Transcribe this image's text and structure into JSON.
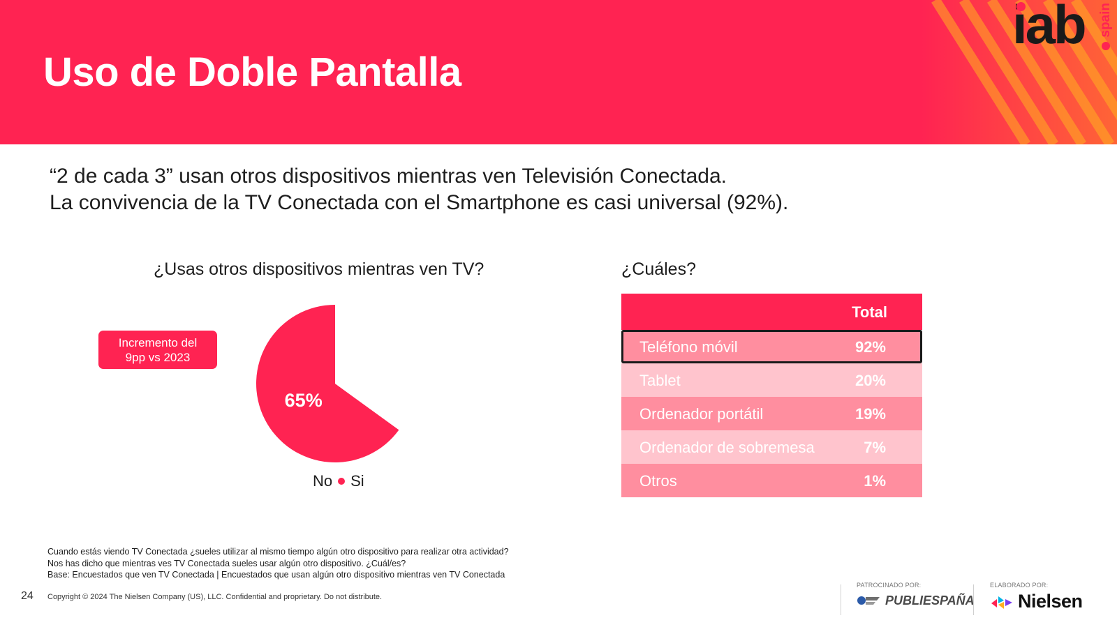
{
  "header": {
    "title": "Uso de Doble Pantalla"
  },
  "brand": {
    "logo_main": "iab",
    "logo_sub": "spain",
    "accent": "#ff2352"
  },
  "subtitle": {
    "line1": "“2 de cada 3” usan otros dispositivos mientras ven Televisión Conectada.",
    "line2": "La convivencia de la TV Conectada con el Smartphone es casi universal (92%)."
  },
  "left_question": "¿Usas otros dispositivos mientras ven TV?",
  "right_question": "¿Cuáles?",
  "badge": {
    "line1": "Incremento del",
    "line2": "9pp vs 2023"
  },
  "chart_data": [
    {
      "type": "pie",
      "title": "¿Usas otros dispositivos mientras ven TV?",
      "categories": [
        "No",
        "Si"
      ],
      "values": [
        35,
        65
      ],
      "data_labels": [
        "",
        "65%"
      ],
      "colors": [
        "#ffffff",
        "#ff2352"
      ],
      "legend": {
        "placement": "bottom",
        "entries": [
          "No",
          "Si"
        ]
      }
    },
    {
      "type": "table",
      "title": "¿Cuáles?",
      "header": [
        "",
        "Total"
      ],
      "rows": [
        {
          "label": "Teléfono móvil",
          "value": "92%"
        },
        {
          "label": "Tablet",
          "value": "20%"
        },
        {
          "label": "Ordenador portátil",
          "value": "19%"
        },
        {
          "label": "Ordenador de sobremesa",
          "value": "7%"
        },
        {
          "label": "Otros",
          "value": "1%"
        }
      ]
    }
  ],
  "notes": {
    "line1": "Cuando estás viendo TV Conectada ¿sueles utilizar al mismo tiempo algún otro dispositivo para realizar otra actividad?",
    "line2": "Nos has dicho que mientras ves TV Conectada sueles usar algún otro dispositivo. ¿Cuál/es?",
    "line3": "Base: Encuestados que ven TV Conectada | Encuestados que usan algún otro dispositivo mientras ven TV Conectada"
  },
  "footer": {
    "page_number": "24",
    "copyright": "Copyright © 2024 The Nielsen Company (US), LLC. Confidential and proprietary. Do not distribute.",
    "sponsor_caption": "PATROCINADO POR:",
    "sponsor_name": "PUBLIESPAÑA",
    "maker_caption": "ELABORADO POR:",
    "maker_name": "Nielsen"
  }
}
